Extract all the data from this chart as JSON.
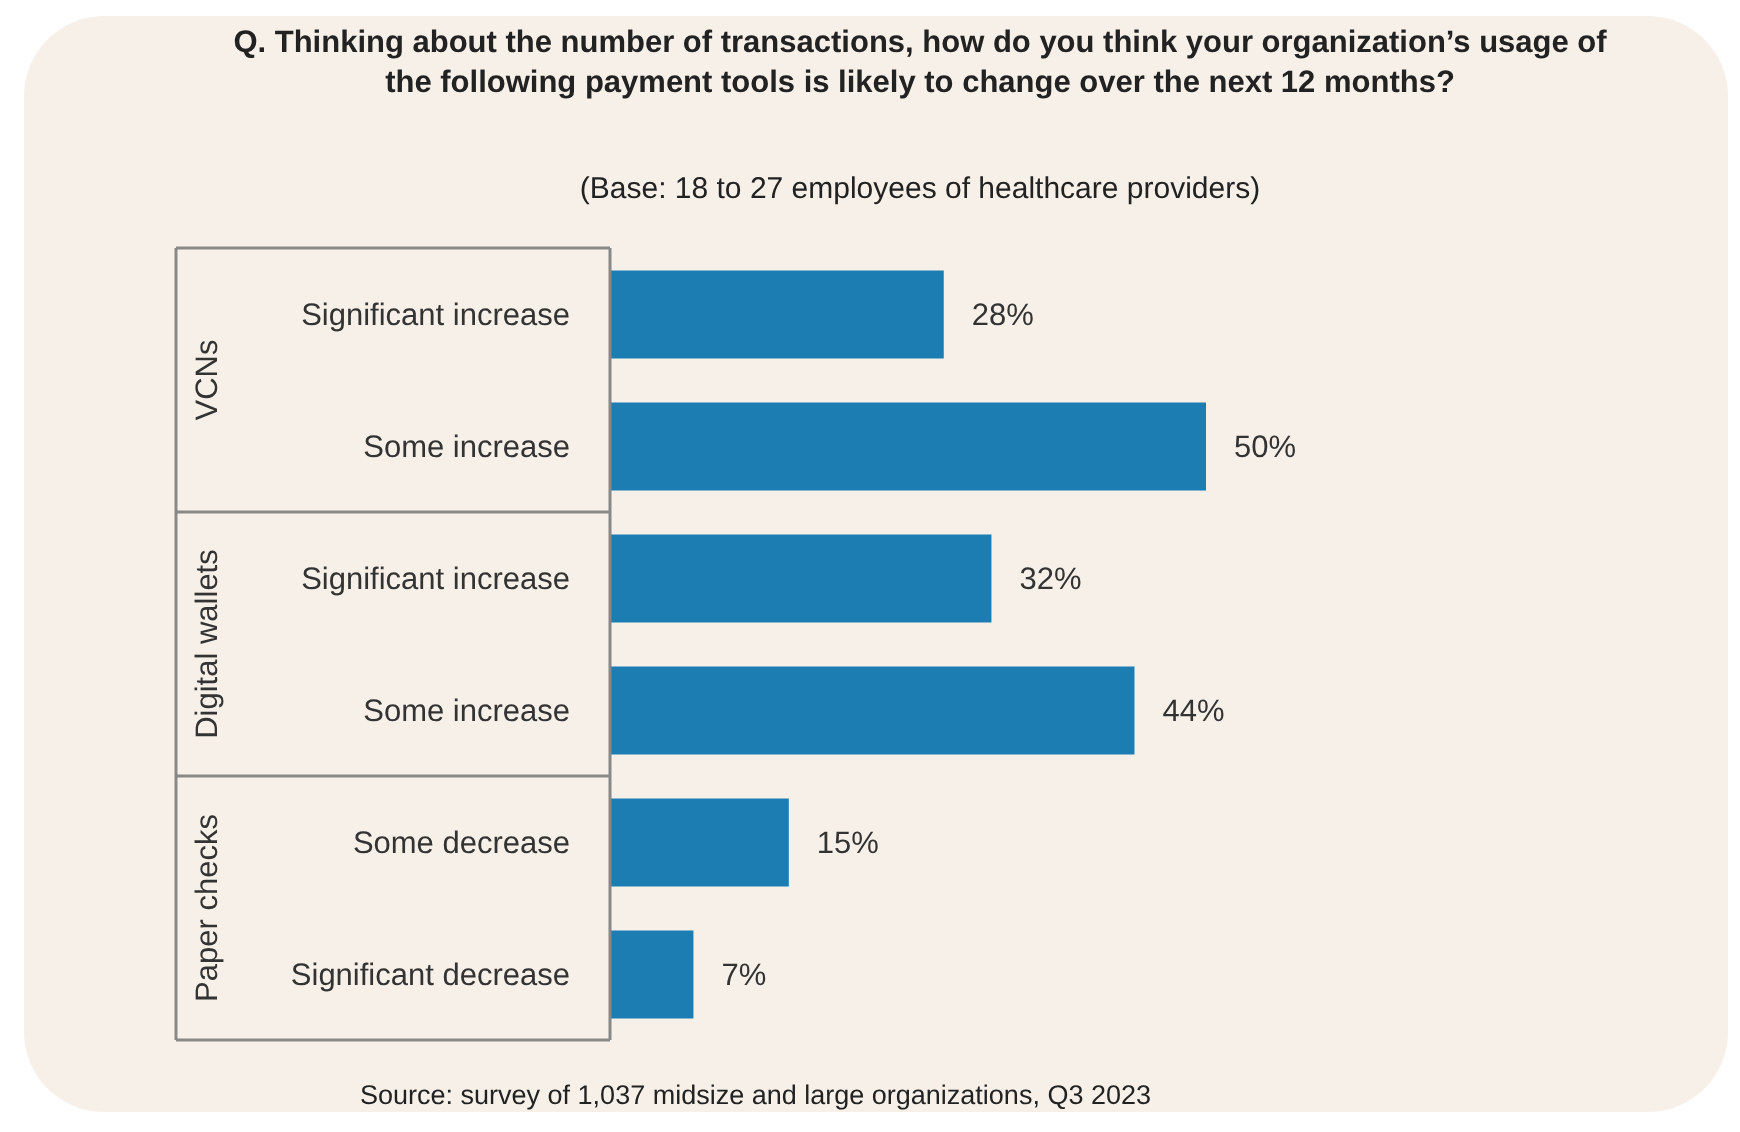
{
  "chart_data": {
    "type": "bar",
    "orientation": "horizontal",
    "title": "Q. Thinking about the number of transactions, how do you think your organization’s usage of the following payment tools is likely to change over the next 12 months?",
    "subtitle": "(Base: 18 to 27 employees of healthcare providers)",
    "categories": [
      "Significant increase",
      "Some increase",
      "Significant increase",
      "Some increase",
      "Some decrease",
      "Significant decrease"
    ],
    "values": [
      28,
      50,
      32,
      44,
      15,
      7
    ],
    "value_labels": [
      "28%",
      "50%",
      "32%",
      "44%",
      "15%",
      "7%"
    ],
    "color": "#1b7db1",
    "annotations": [
      "VCNs",
      "Digital wallets",
      "Paper checks",
      "Source: survey of 1,037 midsize and large organizations, Q3 2023"
    ]
  }
}
